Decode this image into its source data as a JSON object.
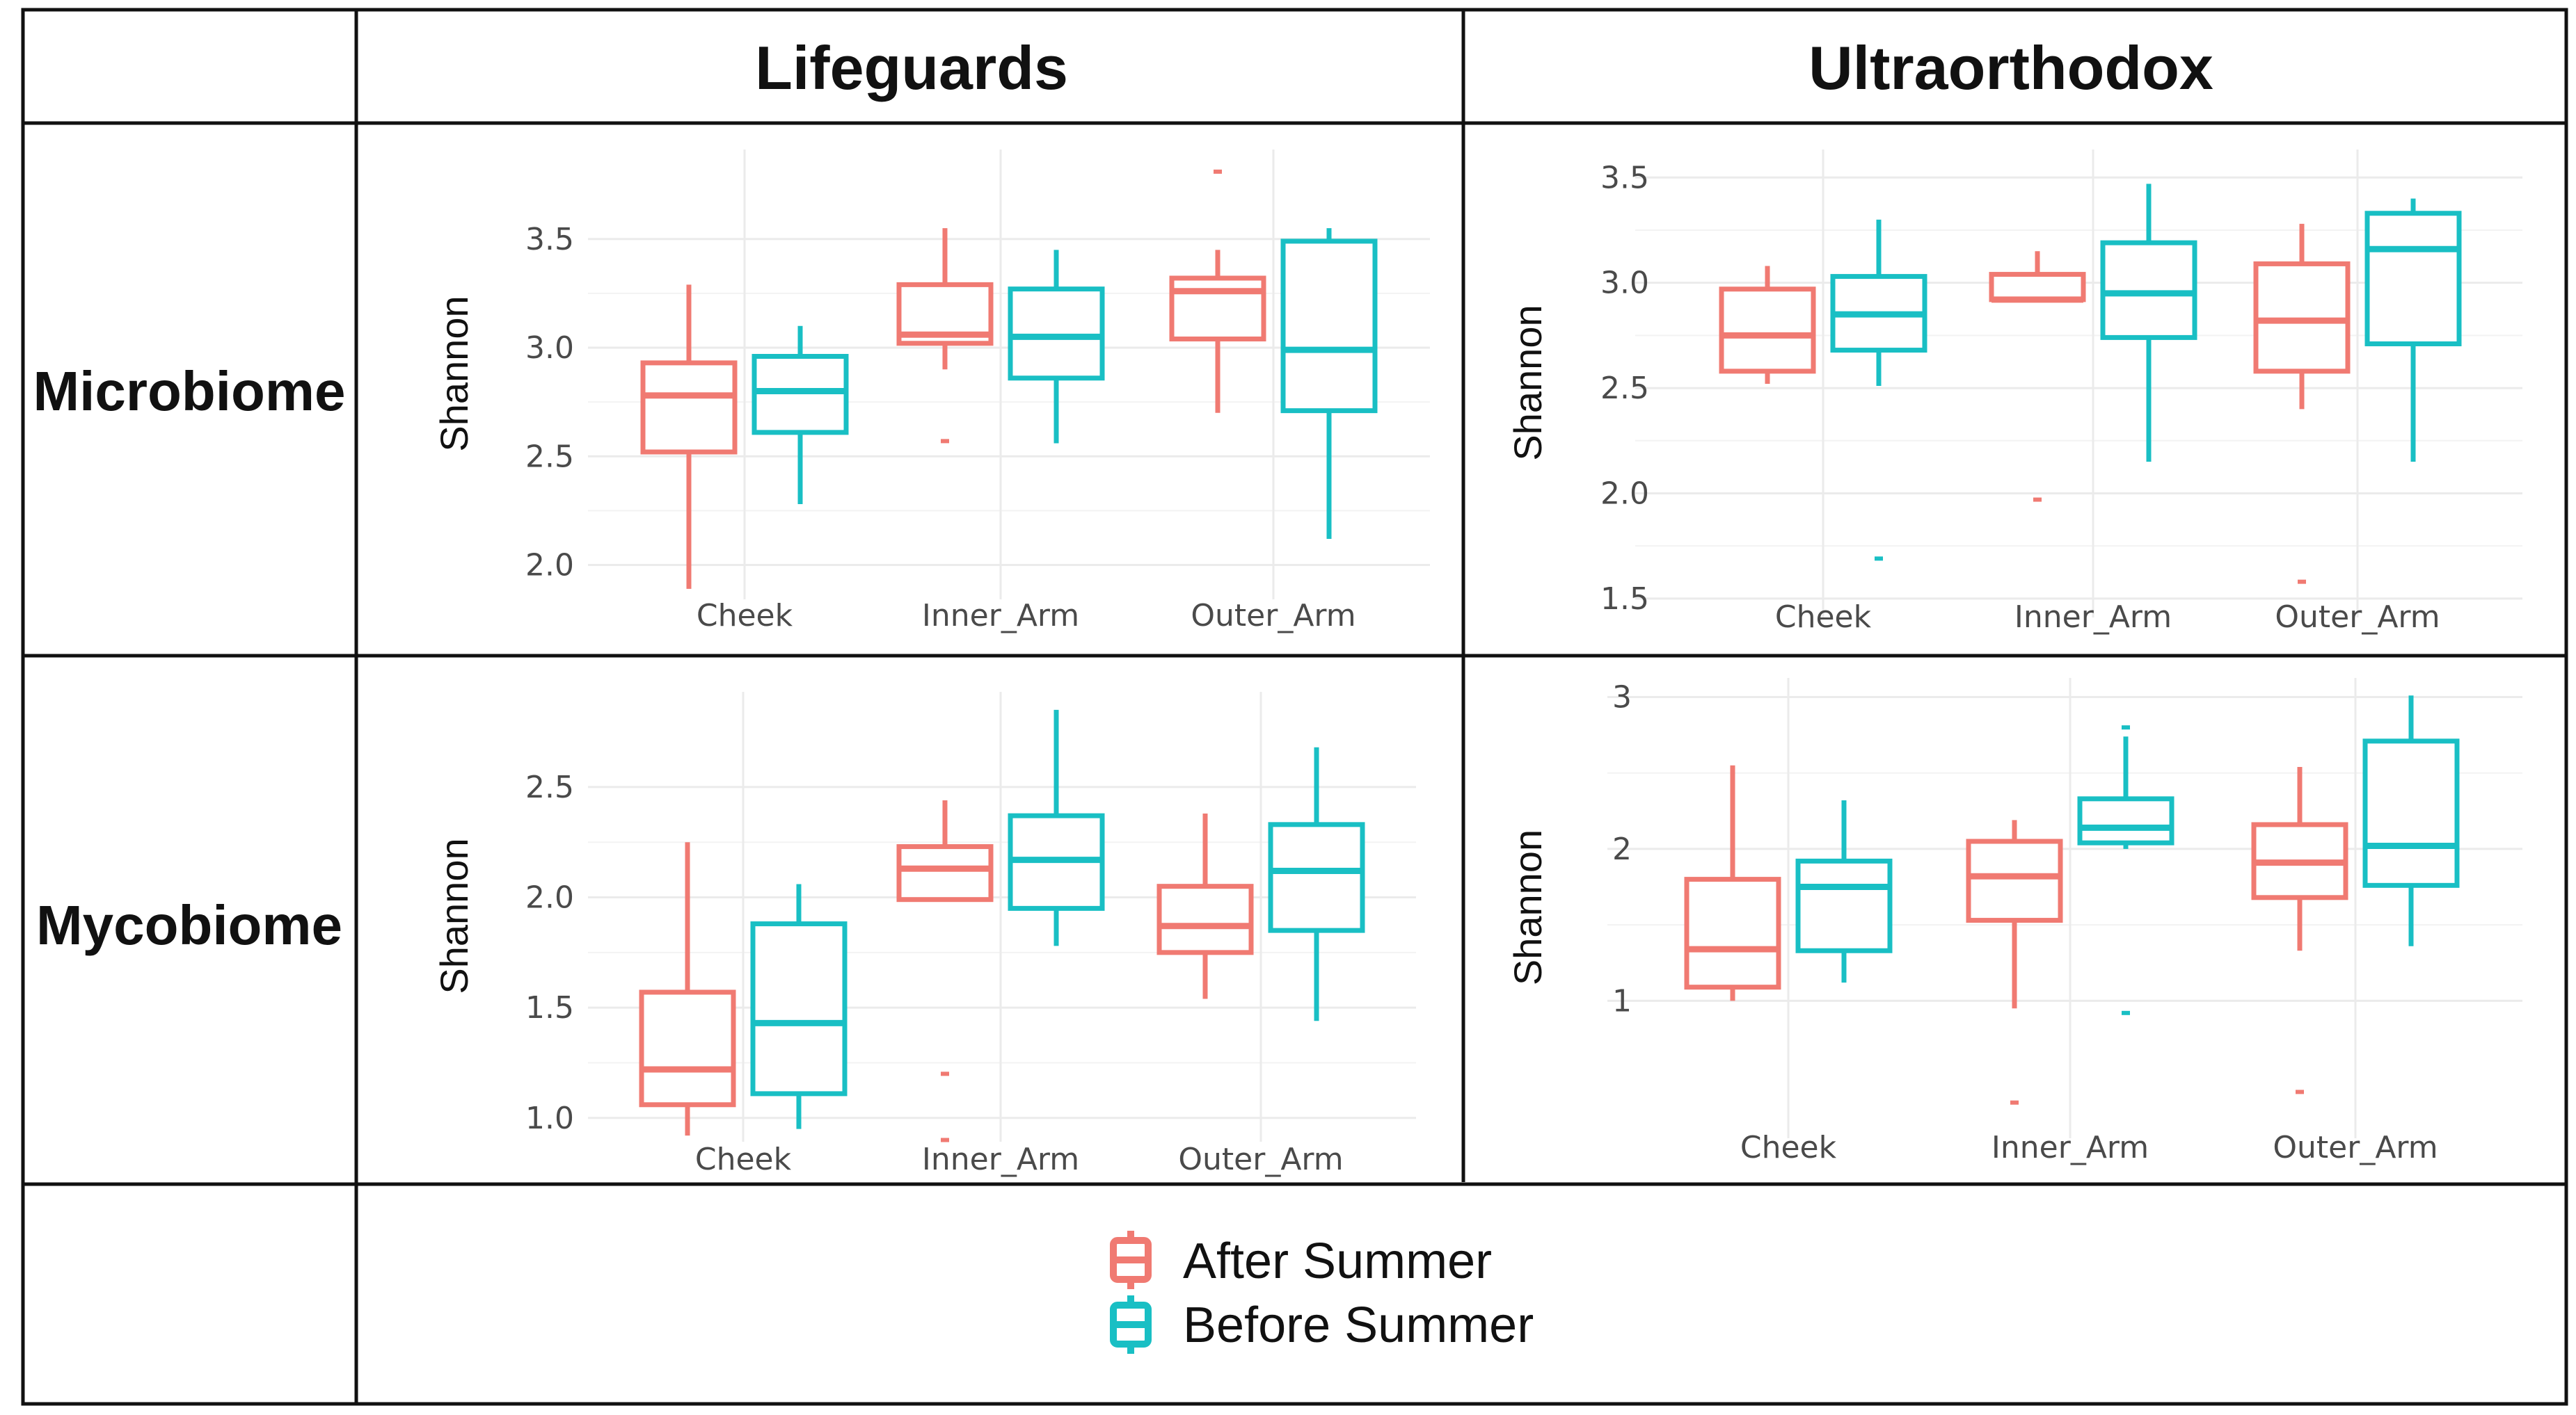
{
  "columns": [
    "Lifeguards",
    "Ultraorthodox"
  ],
  "rows": [
    "Microbiome",
    "Mycobiome"
  ],
  "legend": [
    {
      "label": "After Summer",
      "color": "#f07a72"
    },
    {
      "label": "Before Summer",
      "color": "#19bfc4"
    }
  ],
  "chart_data": [
    {
      "type": "boxplot",
      "title": "Lifeguards - Microbiome",
      "ylabel": "Shannon",
      "xlabel": "",
      "ylim": [
        1.88,
        3.88
      ],
      "yticks": [
        "2.0",
        "2.5",
        "3.0",
        "3.5"
      ],
      "yticks_values": [
        2.0,
        2.5,
        3.0,
        3.5
      ],
      "categories": [
        "Cheek",
        "Inner_Arm",
        "Outer_Arm"
      ],
      "series": [
        {
          "name": "After Summer",
          "boxes": [
            {
              "category": "Cheek",
              "whislo": 1.89,
              "q1": 2.52,
              "med": 2.78,
              "q3": 2.93,
              "whishi": 3.29,
              "fliers": []
            },
            {
              "category": "Inner_Arm",
              "whislo": 2.9,
              "q1": 3.02,
              "med": 3.06,
              "q3": 3.29,
              "whishi": 3.55,
              "fliers": [
                2.57
              ]
            },
            {
              "category": "Outer_Arm",
              "whislo": 2.7,
              "q1": 3.04,
              "med": 3.26,
              "q3": 3.32,
              "whishi": 3.45,
              "fliers": [
                3.81
              ]
            }
          ]
        },
        {
          "name": "Before Summer",
          "boxes": [
            {
              "category": "Cheek",
              "whislo": 2.28,
              "q1": 2.61,
              "med": 2.8,
              "q3": 2.96,
              "whishi": 3.1,
              "fliers": []
            },
            {
              "category": "Inner_Arm",
              "whislo": 2.56,
              "q1": 2.86,
              "med": 3.05,
              "q3": 3.27,
              "whishi": 3.45,
              "fliers": []
            },
            {
              "category": "Outer_Arm",
              "whislo": 2.12,
              "q1": 2.71,
              "med": 2.99,
              "q3": 3.49,
              "whishi": 3.55,
              "fliers": []
            }
          ]
        }
      ]
    },
    {
      "type": "boxplot",
      "title": "Ultraorthodox - Microbiome",
      "ylabel": "Shannon",
      "xlabel": "",
      "ylim": [
        1.45,
        3.6
      ],
      "yticks": [
        "1.5",
        "2.0",
        "2.5",
        "3.0",
        "3.5"
      ],
      "yticks_values": [
        1.5,
        2.0,
        2.5,
        3.0,
        3.5
      ],
      "categories": [
        "Cheek",
        "Inner_Arm",
        "Outer_Arm"
      ],
      "series": [
        {
          "name": "After Summer",
          "boxes": [
            {
              "category": "Cheek",
              "whislo": 2.52,
              "q1": 2.58,
              "med": 2.75,
              "q3": 2.97,
              "whishi": 3.08,
              "fliers": []
            },
            {
              "category": "Inner_Arm",
              "whislo": 2.92,
              "q1": 2.92,
              "med": 2.92,
              "q3": 3.04,
              "whishi": 3.15,
              "fliers": [
                1.97
              ]
            },
            {
              "category": "Outer_Arm",
              "whislo": 2.4,
              "q1": 2.58,
              "med": 2.82,
              "q3": 3.09,
              "whishi": 3.28,
              "fliers": [
                1.58
              ]
            }
          ]
        },
        {
          "name": "Before Summer",
          "boxes": [
            {
              "category": "Cheek",
              "whislo": 2.51,
              "q1": 2.68,
              "med": 2.85,
              "q3": 3.03,
              "whishi": 3.3,
              "fliers": [
                1.69
              ]
            },
            {
              "category": "Inner_Arm",
              "whislo": 2.15,
              "q1": 2.74,
              "med": 2.95,
              "q3": 3.19,
              "whishi": 3.47,
              "fliers": []
            },
            {
              "category": "Outer_Arm",
              "whislo": 2.15,
              "q1": 2.71,
              "med": 3.16,
              "q3": 3.33,
              "whishi": 3.4,
              "fliers": []
            }
          ]
        }
      ]
    },
    {
      "type": "boxplot",
      "title": "Lifeguards - Mycobiome",
      "ylabel": "Shannon",
      "xlabel": "",
      "ylim": [
        0.93,
        2.9
      ],
      "yticks": [
        "1.0",
        "1.5",
        "2.0",
        "2.5"
      ],
      "yticks_values": [
        1.0,
        1.5,
        2.0,
        2.5
      ],
      "categories": [
        "Cheek",
        "Inner_Arm",
        "Outer_Arm"
      ],
      "series": [
        {
          "name": "After Summer",
          "boxes": [
            {
              "category": "Cheek",
              "whislo": 0.92,
              "q1": 1.06,
              "med": 1.22,
              "q3": 1.57,
              "whishi": 2.25,
              "fliers": []
            },
            {
              "category": "Inner_Arm",
              "whislo": 1.99,
              "q1": 1.99,
              "med": 2.13,
              "q3": 2.23,
              "whishi": 2.44,
              "fliers": [
                1.2,
                0.9
              ]
            },
            {
              "category": "Outer_Arm",
              "whislo": 1.54,
              "q1": 1.75,
              "med": 1.87,
              "q3": 2.05,
              "whishi": 2.38,
              "fliers": []
            }
          ]
        },
        {
          "name": "Before Summer",
          "boxes": [
            {
              "category": "Cheek",
              "whislo": 0.95,
              "q1": 1.11,
              "med": 1.43,
              "q3": 1.88,
              "whishi": 2.06,
              "fliers": []
            },
            {
              "category": "Inner_Arm",
              "whislo": 1.78,
              "q1": 1.95,
              "med": 2.17,
              "q3": 2.37,
              "whishi": 2.85,
              "fliers": []
            },
            {
              "category": "Outer_Arm",
              "whislo": 1.44,
              "q1": 1.85,
              "med": 2.12,
              "q3": 2.33,
              "whishi": 2.68,
              "fliers": []
            }
          ]
        }
      ]
    },
    {
      "type": "boxplot",
      "title": "Ultraorthodox - Mycobiome",
      "ylabel": "Shannon",
      "xlabel": "",
      "ylim": [
        0.15,
        3.08
      ],
      "yticks": [
        "1",
        "2",
        "3"
      ],
      "yticks_values": [
        1,
        2,
        3
      ],
      "categories": [
        "Cheek",
        "Inner_Arm",
        "Outer_Arm"
      ],
      "series": [
        {
          "name": "After Summer",
          "boxes": [
            {
              "category": "Cheek",
              "whislo": 1.0,
              "q1": 1.09,
              "med": 1.34,
              "q3": 1.8,
              "whishi": 2.55,
              "fliers": []
            },
            {
              "category": "Inner_Arm",
              "whislo": 0.95,
              "q1": 1.53,
              "med": 1.82,
              "q3": 2.05,
              "whishi": 2.19,
              "fliers": [
                0.33
              ]
            },
            {
              "category": "Outer_Arm",
              "whislo": 1.33,
              "q1": 1.68,
              "med": 1.91,
              "q3": 2.16,
              "whishi": 2.54,
              "fliers": [
                0.4
              ]
            }
          ]
        },
        {
          "name": "Before Summer",
          "boxes": [
            {
              "category": "Cheek",
              "whislo": 1.12,
              "q1": 1.33,
              "med": 1.75,
              "q3": 1.92,
              "whishi": 2.32,
              "fliers": []
            },
            {
              "category": "Inner_Arm",
              "whislo": 2.0,
              "q1": 2.04,
              "med": 2.14,
              "q3": 2.33,
              "whishi": 2.74,
              "fliers": [
                2.8,
                0.92
              ]
            },
            {
              "category": "Outer_Arm",
              "whislo": 1.36,
              "q1": 1.76,
              "med": 2.02,
              "q3": 2.71,
              "whishi": 3.01,
              "fliers": []
            }
          ]
        }
      ]
    }
  ]
}
